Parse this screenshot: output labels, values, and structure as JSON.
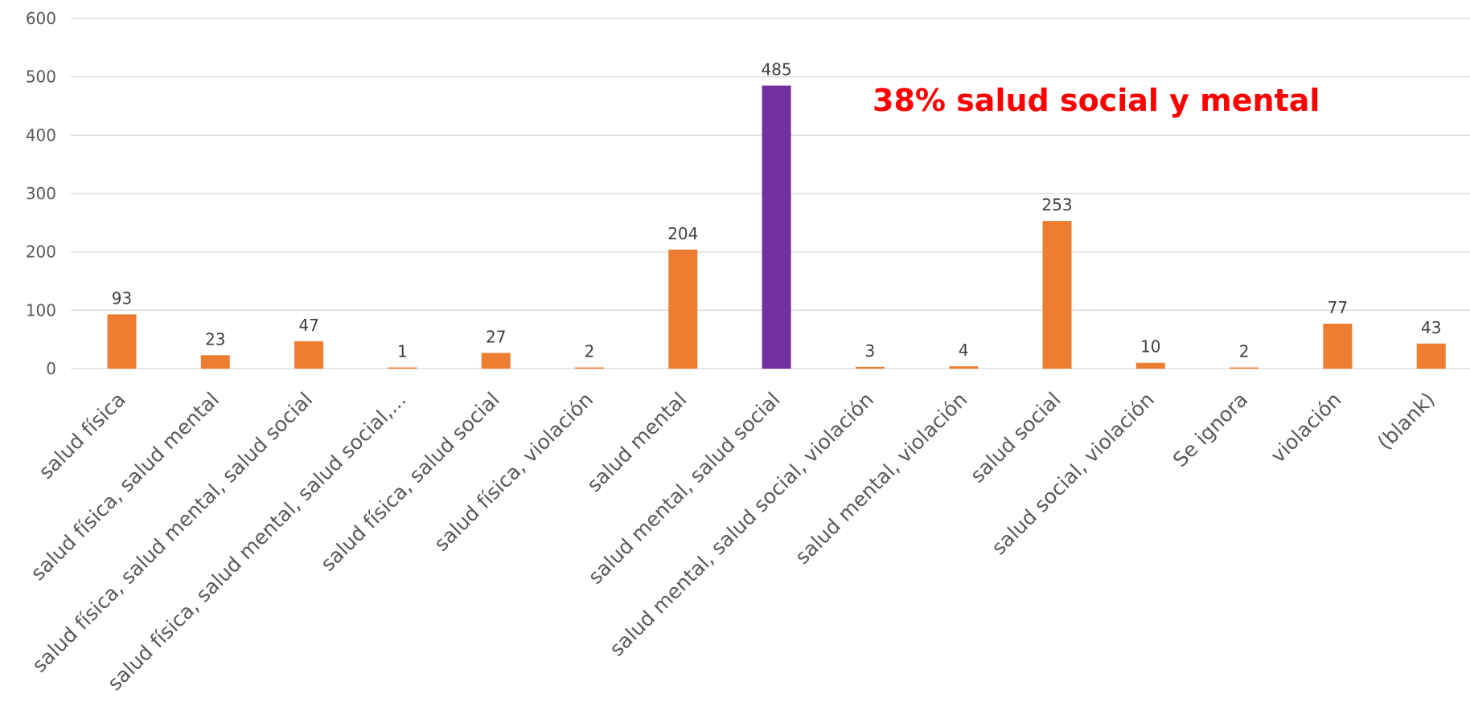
{
  "chart_data": {
    "type": "bar",
    "categories": [
      "salud física",
      "salud física, salud mental",
      "salud física, salud mental, salud social",
      "salud física, salud mental, salud social,...",
      "salud física, salud social",
      "salud física, violación",
      "salud mental",
      "salud mental, salud social",
      "salud mental, salud social, violación",
      "salud mental, violación",
      "salud social",
      "salud social, violación",
      "Se ignora",
      "violación",
      "(blank)"
    ],
    "values": [
      93,
      23,
      47,
      1,
      27,
      2,
      204,
      485,
      3,
      4,
      253,
      10,
      2,
      77,
      43
    ],
    "bar_colors": [
      "#ed7d31",
      "#ed7d31",
      "#ed7d31",
      "#ed7d31",
      "#ed7d31",
      "#ed7d31",
      "#ed7d31",
      "#7030a0",
      "#ed7d31",
      "#ed7d31",
      "#ed7d31",
      "#ed7d31",
      "#ed7d31",
      "#ed7d31",
      "#ed7d31"
    ],
    "ylim": [
      0,
      600
    ],
    "yticks": [
      0,
      100,
      200,
      300,
      400,
      500,
      600
    ],
    "grid": true,
    "legend": "none",
    "title": "",
    "xlabel": "",
    "ylabel": "",
    "annotation": "38% salud social y mental",
    "colors": {
      "default": "#ed7d31",
      "highlight": "#7030a0",
      "annotation": "#ff0000"
    }
  }
}
